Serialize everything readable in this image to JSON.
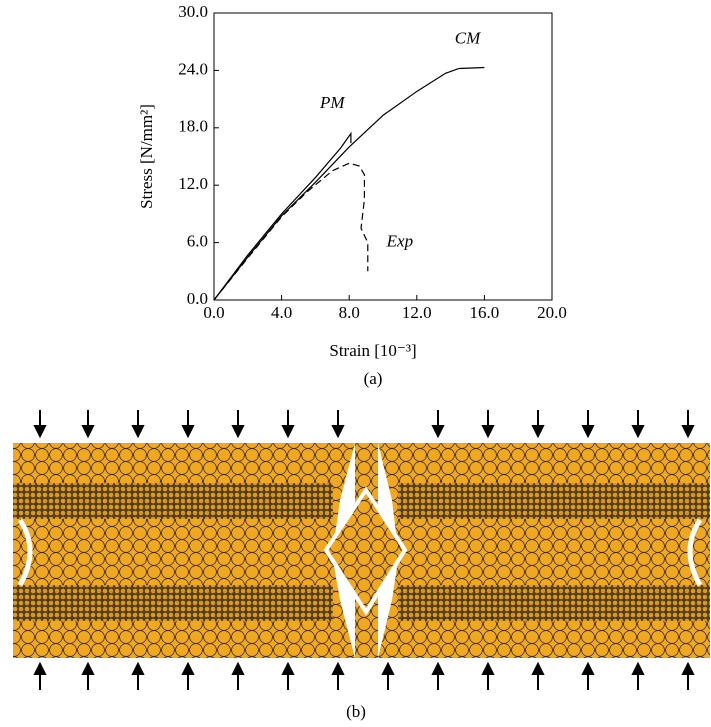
{
  "chart_data": {
    "type": "line",
    "xlabel": "Strain [10⁻³]",
    "ylabel": "Stress [N/mm²]",
    "caption": "(a)",
    "xlim": [
      0,
      20
    ],
    "ylim": [
      0,
      30
    ],
    "xticks": [
      {
        "value": 0,
        "label": "0.0"
      },
      {
        "value": 4,
        "label": "4.0"
      },
      {
        "value": 8,
        "label": "8.0"
      },
      {
        "value": 12,
        "label": "12.0"
      },
      {
        "value": 16,
        "label": "16.0"
      },
      {
        "value": 20,
        "label": "20.0"
      }
    ],
    "yticks": [
      {
        "value": 0,
        "label": "0.0"
      },
      {
        "value": 6,
        "label": "6.0"
      },
      {
        "value": 12,
        "label": "12.0"
      },
      {
        "value": 18,
        "label": "18.0"
      },
      {
        "value": 24,
        "label": "24.0"
      },
      {
        "value": 30,
        "label": "30.0"
      }
    ],
    "series": [
      {
        "name": "CM",
        "color": "#000000",
        "dashed": false,
        "x": [
          0,
          2,
          4,
          6,
          8,
          10,
          12,
          13.7,
          14.5,
          16
        ],
        "values": [
          0,
          4.5,
          8.8,
          12.3,
          16.0,
          19.3,
          21.8,
          23.7,
          24.2,
          24.3
        ]
      },
      {
        "name": "PM",
        "color": "#000000",
        "dashed": false,
        "x": [
          0,
          2,
          4,
          6,
          7.5,
          8.1,
          8.1
        ],
        "values": [
          0,
          4.7,
          9.0,
          12.8,
          15.9,
          17.4,
          16.4
        ]
      },
      {
        "name": "Exp",
        "color": "#000000",
        "dashed": true,
        "x": [
          0,
          2,
          4,
          5.5,
          7,
          8,
          8.6,
          8.9,
          8.9,
          8.7,
          9.1,
          9.1
        ],
        "values": [
          0,
          4.4,
          8.7,
          11.3,
          13.5,
          14.3,
          14.0,
          13.1,
          10.5,
          7.5,
          6.0,
          3.0
        ]
      }
    ]
  },
  "figure_b": {
    "caption": "(b)"
  }
}
